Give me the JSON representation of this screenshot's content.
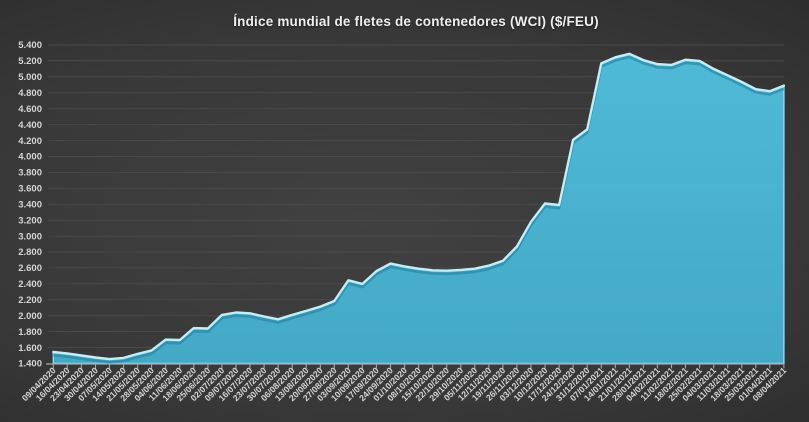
{
  "title": "Índice mundial de fletes de contenedores (WCI) ($/FEU)",
  "colors": {
    "background_center": "#414141",
    "background_edge": "#1e1e1e",
    "area_fill_top": "#4fbad6",
    "area_fill_bottom": "#43a9c6",
    "area_edge_highlight": "#c3eef8",
    "area_edge_soft": "#8fdcec",
    "area_edge_shadow": "#1d7e9c",
    "gridline": "#4b4b4b",
    "axis_line": "#a6a6a6",
    "tick_label": "#d4d4d4",
    "title_text": "#efefef"
  },
  "chart_data": {
    "type": "area",
    "title": "Índice mundial de fletes de contenedores (WCI) ($/FEU)",
    "xlabel": "",
    "ylabel": "",
    "ylim": [
      1400,
      5400
    ],
    "ytick_step": 200,
    "ytick_labels": [
      "1.400",
      "1.600",
      "1.800",
      "2.000",
      "2.200",
      "2.400",
      "2.600",
      "2.800",
      "3.000",
      "3.200",
      "3.400",
      "3.600",
      "3.800",
      "4.000",
      "4.200",
      "4.400",
      "4.600",
      "4.800",
      "5.000",
      "5.200",
      "5.400"
    ],
    "grid": true,
    "legend": false,
    "x_label_rotation_deg": -45,
    "categories": [
      "09/04/2020",
      "16/04/2020",
      "23/04/2020",
      "30/04/2020",
      "07/05/2020",
      "14/05/2020",
      "21/05/2020",
      "28/05/2020",
      "04/06/2020",
      "11/06/2020",
      "18/06/2020",
      "25/06/2020",
      "02/07/2020",
      "09/07/2020",
      "16/07/2020",
      "23/07/2020",
      "30/07/2020",
      "06/08/2020",
      "13/08/2020",
      "20/08/2020",
      "27/08/2020",
      "03/09/2020",
      "10/09/2020",
      "17/09/2020",
      "24/09/2020",
      "01/10/2020",
      "08/10/2020",
      "15/10/2020",
      "22/10/2020",
      "29/10/2020",
      "05/11/2020",
      "12/11/2020",
      "19/11/2020",
      "26/11/2020",
      "03/12/2020",
      "10/12/2020",
      "17/12/2020",
      "24/12/2020",
      "31/12/2020",
      "07/01/2021",
      "14/01/2021",
      "21/01/2021",
      "28/01/2021",
      "04/02/2021",
      "11/02/2021",
      "18/02/2021",
      "25/02/2021",
      "04/03/2021",
      "11/03/2021",
      "18/03/2021",
      "25/03/2021",
      "01/04/2021",
      "08/04/2021"
    ],
    "values": [
      1545,
      1525,
      1500,
      1475,
      1455,
      1470,
      1520,
      1565,
      1700,
      1695,
      1845,
      1840,
      2010,
      2040,
      2030,
      1990,
      1955,
      2010,
      2060,
      2115,
      2185,
      2445,
      2400,
      2560,
      2655,
      2620,
      2590,
      2570,
      2565,
      2575,
      2590,
      2630,
      2690,
      2870,
      3180,
      3410,
      3390,
      4210,
      4340,
      5170,
      5245,
      5290,
      5210,
      5160,
      5150,
      5215,
      5200,
      5100,
      5020,
      4935,
      4845,
      4820,
      4890
    ]
  }
}
